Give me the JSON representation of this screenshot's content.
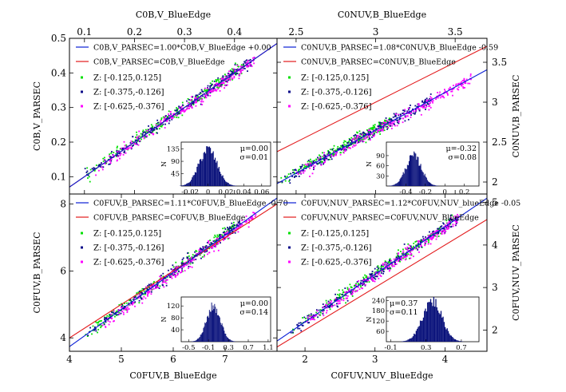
{
  "colors": {
    "blue": "#0a1fd6",
    "red": "#e31a1c",
    "green": "#00e000",
    "navy": "#0b0b8a",
    "magenta": "#ff00ff",
    "hist": "#08107a"
  },
  "chart_data": [
    {
      "type": "scatter",
      "top_label": "C0B,V_BlueEdge",
      "side_label": "C0B,V_PARSEC",
      "xlim": [
        0.07,
        0.485
      ],
      "ylim": [
        0.05,
        0.5
      ],
      "xticks": [
        "0.1",
        "0.2",
        "0.3",
        "0.4"
      ],
      "xtick_values": [
        0.1,
        0.2,
        0.3,
        0.4
      ],
      "yticks": [
        "0.1",
        "0.2",
        "0.3",
        "0.4",
        "0.5"
      ],
      "ytick_values": [
        0.1,
        0.2,
        0.3,
        0.4,
        0.5
      ],
      "xaxis_side": "top",
      "yaxis_side": "left",
      "fit": {
        "label": "C0B,V_PARSEC=1.00*C0B,V_BlueEdge +0.00",
        "slope": 1.0,
        "intercept": 0.0
      },
      "identity": {
        "label": "C0B,V_PARSEC=C0B,V_BlueEdge"
      },
      "series": [
        {
          "name": "Z: [-0.125,0.125]",
          "color": "green",
          "x_range": [
            0.1,
            0.42
          ],
          "slope": 1.0,
          "offset": 0.0
        },
        {
          "name": "Z: [-0.375,-0.126]",
          "color": "navy",
          "x_range": [
            0.1,
            0.44
          ],
          "slope": 1.0,
          "offset": 0.0
        },
        {
          "name": "Z: [-0.625,-0.376]",
          "color": "magenta",
          "x_range": [
            0.12,
            0.44
          ],
          "slope": 1.0,
          "offset": 0.0
        }
      ],
      "inset": {
        "mu": "μ=0.00",
        "sigma": "σ=0.01",
        "mean": 0.0,
        "std": 0.01,
        "xlim": [
          -0.03,
          0.07
        ],
        "ylim": [
          0,
          160
        ],
        "xticks": [
          "-0.02",
          "0",
          "0.02",
          "0.04",
          "0.06"
        ],
        "xtick_values": [
          -0.02,
          0,
          0.02,
          0.04,
          0.06
        ],
        "yticks": [
          "45",
          "90",
          "135"
        ],
        "ytick_values": [
          45,
          90,
          135
        ],
        "ylabel": "N"
      }
    },
    {
      "type": "scatter",
      "top_label": "C0NUV,B_BlueEdge",
      "side_label": "C0NUV,B_PARSEC",
      "xlim": [
        2.38,
        3.7
      ],
      "ylim": [
        1.85,
        3.8
      ],
      "xticks": [
        "2.5",
        "3",
        "3.5"
      ],
      "xtick_values": [
        2.5,
        3.0,
        3.5
      ],
      "yticks": [
        "2",
        "2.5",
        "3",
        "3.5"
      ],
      "ytick_values": [
        2.0,
        2.5,
        3.0,
        3.5
      ],
      "xaxis_side": "top",
      "yaxis_side": "right",
      "fit": {
        "label": "C0NUV,B_PARSEC=1.08*C0NUV,B_BlueEdge -0.59",
        "slope": 1.08,
        "intercept": -0.59
      },
      "identity": {
        "label": "C0NUV,B_PARSEC=C0NUV,B_BlueEdge"
      },
      "series": [
        {
          "name": "Z: [-0.125,0.125]",
          "color": "green",
          "x_range": [
            2.4,
            3.1
          ],
          "slope": 1.08,
          "offset": -0.59
        },
        {
          "name": "Z: [-0.375,-0.126]",
          "color": "navy",
          "x_range": [
            2.4,
            3.35
          ],
          "slope": 1.08,
          "offset": -0.59
        },
        {
          "name": "Z: [-0.625,-0.376]",
          "color": "magenta",
          "x_range": [
            2.5,
            3.6
          ],
          "slope": 1.08,
          "offset": -0.59
        }
      ],
      "inset": {
        "mu": "μ=-0.32",
        "sigma": "σ=0.08",
        "mean": -0.32,
        "std": 0.08,
        "xlim": [
          -0.6,
          0.35
        ],
        "ylim": [
          0,
          130
        ],
        "xticks": [
          "-0.4",
          "-0.2",
          "0",
          "0.2"
        ],
        "xtick_values": [
          -0.4,
          -0.2,
          0,
          0.2
        ],
        "yticks": [
          "30",
          "60",
          "90"
        ],
        "ytick_values": [
          30,
          60,
          90
        ],
        "ylabel": "N"
      }
    },
    {
      "type": "scatter",
      "bottom_label": "C0FUV,B_BlueEdge",
      "side_label": "C0FUV,B_PARSEC",
      "xlim": [
        4.0,
        8.0
      ],
      "ylim": [
        3.6,
        8.3
      ],
      "xticks": [
        "4",
        "5",
        "6",
        "7"
      ],
      "xtick_values": [
        4,
        5,
        6,
        7
      ],
      "yticks": [
        "4",
        "6",
        "8"
      ],
      "ytick_values": [
        4,
        6,
        8
      ],
      "xaxis_side": "bottom",
      "yaxis_side": "left",
      "fit": {
        "label": "C0FUV,B_PARSEC=1.11*C0FUV,B_BlueEdge -0.70",
        "slope": 1.11,
        "intercept": -0.7
      },
      "identity": {
        "label": "C0FUV,B_PARSEC=C0FUV,B_BlueEdge"
      },
      "series": [
        {
          "name": "Z: [-0.125,0.125]",
          "color": "green",
          "x_range": [
            4.3,
            7.2
          ],
          "slope": 1.11,
          "offset": -0.7
        },
        {
          "name": "Z: [-0.375,-0.126]",
          "color": "navy",
          "x_range": [
            4.3,
            7.3
          ],
          "slope": 1.11,
          "offset": -0.7
        },
        {
          "name": "Z: [-0.625,-0.376]",
          "color": "magenta",
          "x_range": [
            4.6,
            7.6
          ],
          "slope": 1.11,
          "offset": -0.7
        }
      ],
      "inset": {
        "mu": "μ=0.00",
        "sigma": "σ=0.14",
        "mean": 0.0,
        "std": 0.14,
        "xlim": [
          -0.65,
          1.15
        ],
        "ylim": [
          0,
          150
        ],
        "xticks": [
          "-0.5",
          "-0.1",
          "0.3",
          "0.7",
          "1.1"
        ],
        "xtick_values": [
          -0.5,
          -0.1,
          0.3,
          0.7,
          1.1
        ],
        "yticks": [
          "40",
          "80",
          "120"
        ],
        "ytick_values": [
          40,
          80,
          120
        ],
        "ylabel": "N"
      }
    },
    {
      "type": "scatter",
      "bottom_label": "C0FUV,NUV_BlueEdge",
      "side_label": "C0FUV,NUV_PARSEC",
      "xlim": [
        1.6,
        4.6
      ],
      "ylim": [
        1.5,
        5.2
      ],
      "xticks": [
        "2",
        "3",
        "4"
      ],
      "xtick_values": [
        2,
        3,
        4
      ],
      "yticks": [
        "2",
        "3",
        "4",
        "5"
      ],
      "ytick_values": [
        2,
        3,
        4,
        5
      ],
      "xaxis_side": "bottom",
      "yaxis_side": "right",
      "fit": {
        "label": "C0FUV,NUV_PARSEC=1.12*C0FUV,NUV_blueEdge -0.05",
        "slope": 1.12,
        "intercept": -0.05
      },
      "identity": {
        "label": "C0FUV,NUV_PARSEC=C0FUV,NUV_BlueEdge"
      },
      "series": [
        {
          "name": "Z: [-0.125,0.125]",
          "color": "green",
          "x_range": [
            1.8,
            4.1
          ],
          "slope": 1.12,
          "offset": -0.05
        },
        {
          "name": "Z: [-0.375,-0.126]",
          "color": "navy",
          "x_range": [
            1.8,
            4.2
          ],
          "slope": 1.12,
          "offset": -0.05
        },
        {
          "name": "Z: [-0.625,-0.376]",
          "color": "magenta",
          "x_range": [
            2.0,
            4.2
          ],
          "slope": 1.12,
          "offset": -0.05
        }
      ],
      "inset": {
        "mu": "μ=0.37",
        "sigma": "σ=0.11",
        "mean": 0.37,
        "std": 0.11,
        "xlim": [
          -0.15,
          0.9
        ],
        "ylim": [
          0,
          260
        ],
        "xticks": [
          "-0.1",
          "0.3",
          "0.7"
        ],
        "xtick_values": [
          -0.1,
          0.3,
          0.7
        ],
        "yticks": [
          "60",
          "120",
          "180",
          "240"
        ],
        "ytick_values": [
          60,
          120,
          180,
          240
        ],
        "ylabel": "N"
      }
    }
  ]
}
